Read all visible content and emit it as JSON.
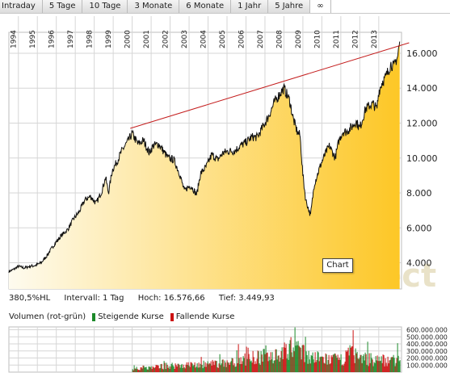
{
  "tabs": [
    {
      "label": "Intraday",
      "active": false
    },
    {
      "label": "5 Tage",
      "active": false
    },
    {
      "label": "10 Tage",
      "active": false
    },
    {
      "label": "3 Monate",
      "active": false
    },
    {
      "label": "6 Monate",
      "active": false
    },
    {
      "label": "1 Jahr",
      "active": false
    },
    {
      "label": "5 Jahre",
      "active": false
    },
    {
      "label": "∞",
      "active": true
    }
  ],
  "stats": {
    "change": "380,5%HL",
    "interval": "Intervall: 1 Tag",
    "high": "Hoch: 16.576,66",
    "low": "Tief:  3.449,93"
  },
  "volume_legend": {
    "title": "Volumen (rot-grün)",
    "rising": "Steigende Kurse",
    "falling": "Fallende Kurse"
  },
  "tooltip": "Chart",
  "watermark": ".comdirect",
  "colors": {
    "fill_top": "#fdc726",
    "fill_bottom": "#fefbef",
    "line": "#111111",
    "trendline": "#c41e1e",
    "grid": "#d6d6d6",
    "up": "#1c8a2a",
    "down": "#cc1111"
  },
  "chart_data": [
    {
      "type": "area",
      "x_tick_labels": [
        "1994",
        "1995",
        "1996",
        "1997",
        "1998",
        "1999",
        "2000",
        "2001",
        "2002",
        "2003",
        "2004",
        "2005",
        "2006",
        "2007",
        "2008",
        "2009",
        "2010",
        "2011",
        "2012",
        "2013"
      ],
      "x_range": [
        1993.5,
        2014.2
      ],
      "y_tick_labels": [
        "4.000",
        "6.000",
        "8.000",
        "10.000",
        "12.000",
        "14.000",
        "16.000"
      ],
      "y_ticks": [
        4000,
        6000,
        8000,
        10000,
        12000,
        14000,
        16000
      ],
      "ylim": [
        2500,
        17200
      ],
      "grid": true,
      "series": [
        {
          "x": [
            1993.5,
            1993.8,
            1994.0,
            1994.3,
            1994.6,
            1994.9,
            1995.2,
            1995.5,
            1995.8,
            1996.0,
            1996.3,
            1996.6,
            1996.9,
            1997.2,
            1997.5,
            1997.8,
            1998.1,
            1998.4,
            1998.6,
            1998.75,
            1998.95,
            1999.2,
            1999.5,
            1999.8,
            2000.0,
            2000.3,
            2000.6,
            2000.9,
            2001.1,
            2001.4,
            2001.7,
            2001.9,
            2002.2,
            2002.5,
            2002.75,
            2002.9,
            2003.1,
            2003.4,
            2003.6,
            2003.9,
            2004.2,
            2004.5,
            2004.8,
            2005.1,
            2005.4,
            2005.7,
            2006.0,
            2006.3,
            2006.6,
            2006.9,
            2007.2,
            2007.5,
            2007.8,
            2008.0,
            2008.3,
            2008.5,
            2008.7,
            2008.85,
            2009.0,
            2009.15,
            2009.4,
            2009.6,
            2009.9,
            2010.2,
            2010.4,
            2010.7,
            2010.9,
            2011.1,
            2011.3,
            2011.6,
            2011.8,
            2012.0,
            2012.3,
            2012.5,
            2012.7,
            2012.9,
            2013.0,
            2013.2,
            2013.35,
            2013.5,
            2013.65,
            2013.8,
            2013.9,
            2014.0,
            2014.05,
            2014.1
          ],
          "y": [
            3500,
            3650,
            3800,
            3700,
            3800,
            3850,
            4000,
            4400,
            4900,
            5200,
            5600,
            5900,
            6500,
            6900,
            7600,
            7800,
            7400,
            8100,
            8900,
            8000,
            9300,
            9800,
            10500,
            11000,
            11400,
            10800,
            11000,
            10300,
            10700,
            10800,
            10300,
            10000,
            9900,
            9100,
            8100,
            8300,
            8400,
            7900,
            9100,
            9500,
            10200,
            9900,
            10300,
            10400,
            10400,
            10700,
            10900,
            11200,
            11200,
            11800,
            12400,
            13200,
            13700,
            14000,
            13300,
            12200,
            11500,
            11300,
            9000,
            7600,
            6700,
            8500,
            9500,
            10300,
            10700,
            10000,
            11000,
            11500,
            11500,
            11800,
            12100,
            11700,
            12800,
            13000,
            13100,
            12800,
            13800,
            14400,
            14600,
            15000,
            15400,
            15200,
            15600,
            15800,
            16300,
            16500
          ]
        },
        {
          "name": "",
          "style": "trendline",
          "x": [
            1999.9,
            2014.6
          ],
          "y": [
            11700,
            16600
          ]
        }
      ]
    },
    {
      "type": "bar",
      "y_tick_labels": [
        "600.000.000",
        "500.000.000",
        "400.000.000",
        "300.000.000",
        "200.000.000",
        "100.000.000"
      ],
      "y_ticks": [
        600000000,
        500000000,
        400000000,
        300000000,
        200000000,
        100000000
      ],
      "ylim": [
        0,
        640000000
      ],
      "x_range": [
        1993.5,
        2014.2
      ],
      "volume_start": 2000.0,
      "volume_profile": {
        "x": [
          2000.0,
          2002.0,
          2004.0,
          2005.0,
          2006.0,
          2007.0,
          2008.0,
          2008.5,
          2009.0,
          2009.5,
          2010.0,
          2011.0,
          2011.5,
          2012.0,
          2013.0,
          2014.1
        ],
        "y": [
          60000000,
          110000000,
          130000000,
          150000000,
          220000000,
          260000000,
          330000000,
          420000000,
          300000000,
          240000000,
          220000000,
          200000000,
          330000000,
          230000000,
          200000000,
          200000000
        ]
      }
    }
  ]
}
